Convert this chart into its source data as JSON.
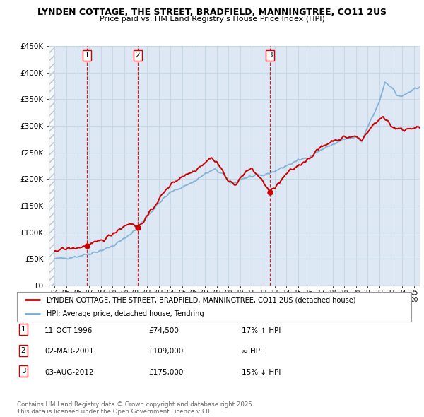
{
  "title1": "LYNDEN COTTAGE, THE STREET, BRADFIELD, MANNINGTREE, CO11 2US",
  "title2": "Price paid vs. HM Land Registry's House Price Index (HPI)",
  "ylabel_ticks": [
    "£0",
    "£50K",
    "£100K",
    "£150K",
    "£200K",
    "£250K",
    "£300K",
    "£350K",
    "£400K",
    "£450K"
  ],
  "ytick_vals": [
    0,
    50000,
    100000,
    150000,
    200000,
    250000,
    300000,
    350000,
    400000,
    450000
  ],
  "xmin": 1993.5,
  "xmax": 2025.5,
  "ymin": 0,
  "ymax": 450000,
  "sales": [
    {
      "year": 1996.78,
      "price": 74500,
      "label": "1"
    },
    {
      "year": 2001.17,
      "price": 109000,
      "label": "2"
    },
    {
      "year": 2012.59,
      "price": 175000,
      "label": "3"
    }
  ],
  "legend_house_label": "LYNDEN COTTAGE, THE STREET, BRADFIELD, MANNINGTREE, CO11 2US (detached house)",
  "legend_hpi_label": "HPI: Average price, detached house, Tendring",
  "table": [
    {
      "num": "1",
      "date": "11-OCT-1996",
      "price": "£74,500",
      "rel": "17% ↑ HPI"
    },
    {
      "num": "2",
      "date": "02-MAR-2001",
      "price": "£109,000",
      "rel": "≈ HPI"
    },
    {
      "num": "3",
      "date": "03-AUG-2012",
      "price": "£175,000",
      "rel": "15% ↓ HPI"
    }
  ],
  "footnote": "Contains HM Land Registry data © Crown copyright and database right 2025.\nThis data is licensed under the Open Government Licence v3.0.",
  "house_color": "#cc0000",
  "hpi_color": "#7aadd4",
  "vline_color": "#cc0000",
  "grid_color": "#c8d8e8",
  "bg_color": "#ffffff",
  "plot_bg": "#dde8f4"
}
